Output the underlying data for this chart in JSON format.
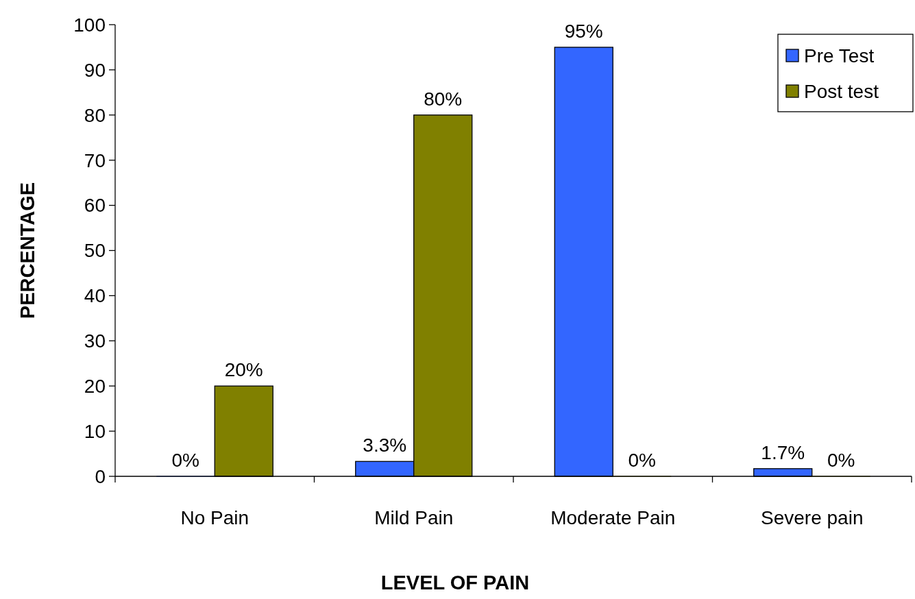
{
  "chart_data": {
    "type": "bar",
    "xlabel": "LEVEL OF PAIN",
    "ylabel": "PERCENTAGE",
    "categories": [
      "No Pain",
      "Mild Pain",
      "Moderate Pain",
      "Severe pain"
    ],
    "series": [
      {
        "name": "Pre Test",
        "color": "#3366ff",
        "values": [
          0,
          3.3,
          95,
          1.7
        ],
        "value_labels": [
          "0%",
          "3.3%",
          "95%",
          "1.7%"
        ]
      },
      {
        "name": "Post test",
        "color": "#808000",
        "values": [
          20,
          80,
          0,
          0
        ],
        "value_labels": [
          "20%",
          "80%",
          "0%",
          "0%"
        ]
      }
    ],
    "ylim": [
      0,
      100
    ],
    "yticks": [
      0,
      10,
      20,
      30,
      40,
      50,
      60,
      70,
      80,
      90,
      100
    ],
    "grid": false,
    "legend": "top right"
  }
}
